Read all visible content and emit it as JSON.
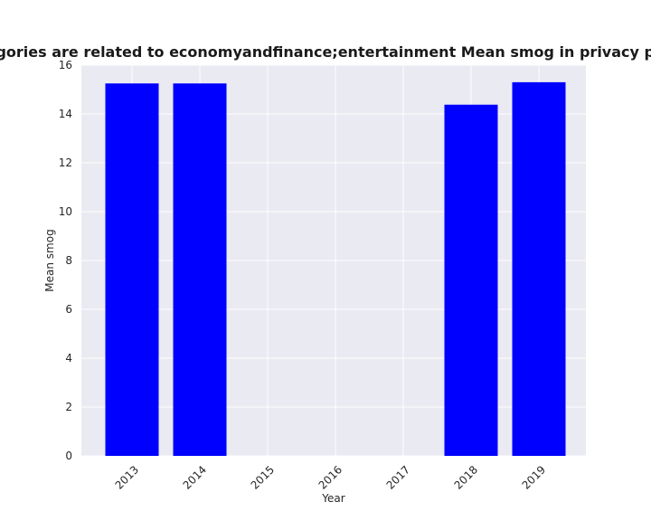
{
  "chart_data": {
    "type": "bar",
    "title": "n categories are related to economyandfinance;entertainment Mean smog in privacy policies b",
    "xlabel": "Year",
    "ylabel": "Mean smog",
    "categories": [
      "2013",
      "2014",
      "2015",
      "2016",
      "2017",
      "2018",
      "2019"
    ],
    "values": [
      15.25,
      15.25,
      null,
      null,
      null,
      14.38,
      15.3
    ],
    "ylim": [
      0,
      16
    ],
    "yticks": [
      "0",
      "2",
      "4",
      "6",
      "8",
      "10",
      "12",
      "14",
      "16"
    ],
    "bar_color": "#0000ff",
    "background_color": "#eaeaf2",
    "grid": true,
    "xtick_rotation_deg": 45
  }
}
